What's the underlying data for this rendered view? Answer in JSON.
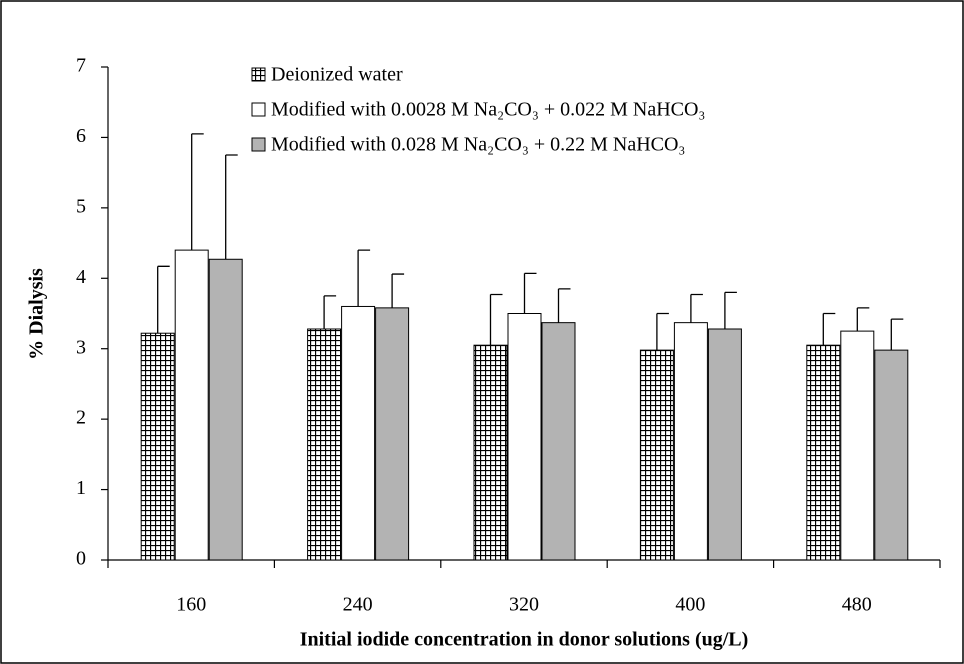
{
  "chart_data": {
    "type": "bar",
    "x_label": "Initial iodide concentration in donor solutions (ug/L)",
    "y_label": "% Dialysis",
    "categories": [
      "160",
      "240",
      "320",
      "400",
      "480"
    ],
    "series": [
      {
        "name": "Deionized water",
        "color": "#000000",
        "fill_pattern": "crosshatch",
        "values": [
          3.22,
          3.28,
          3.05,
          2.98,
          3.05
        ],
        "errors": [
          0.95,
          0.47,
          0.72,
          0.52,
          0.45
        ]
      },
      {
        "name": "Modified with 0.0028 M Na₂CO₃ + 0.022 M NaHCO₃",
        "color": "#ffffff",
        "values": [
          4.4,
          3.6,
          3.5,
          3.37,
          3.25
        ],
        "errors": [
          1.65,
          0.8,
          0.57,
          0.4,
          0.33
        ]
      },
      {
        "name": "Modified with 0.028 M Na₂CO₃ + 0.22 M NaHCO₃",
        "color": "#b3b3b3",
        "values": [
          4.27,
          3.58,
          3.37,
          3.28,
          2.98
        ],
        "errors": [
          1.48,
          0.48,
          0.48,
          0.52,
          0.44
        ]
      }
    ],
    "ylim": [
      0,
      7
    ],
    "yticks": [
      0,
      1,
      2,
      3,
      4,
      5,
      6,
      7
    ],
    "grid": false,
    "legend": "top"
  }
}
